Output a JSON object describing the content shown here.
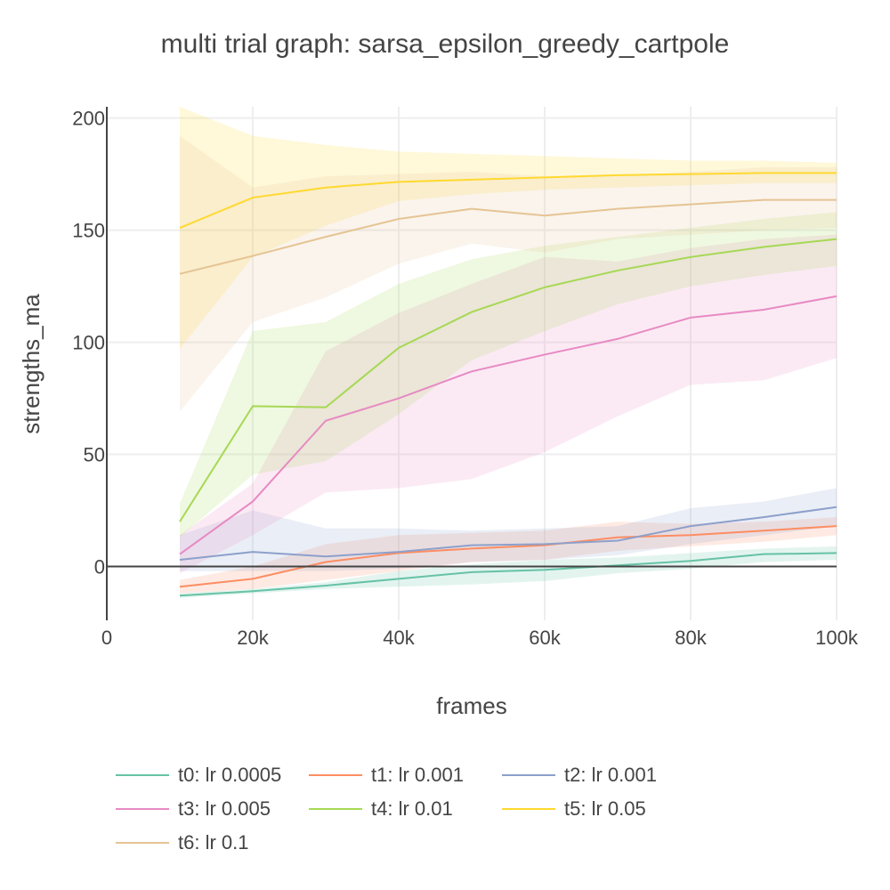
{
  "chart_data": {
    "type": "line",
    "title": "multi trial graph: sarsa_epsilon_greedy_cartpole",
    "xlabel": "frames",
    "ylabel": "strengths_ma",
    "xlim": [
      0,
      100000
    ],
    "ylim": [
      -24,
      205
    ],
    "x_ticks": [
      0,
      20000,
      40000,
      60000,
      80000,
      100000
    ],
    "x_tick_labels": [
      "0",
      "20k",
      "40k",
      "60k",
      "80k",
      "100k"
    ],
    "y_ticks": [
      0,
      50,
      100,
      150,
      200
    ],
    "y_tick_labels": [
      "0",
      "50",
      "100",
      "150",
      "200"
    ],
    "grid": true,
    "legend_position": "bottom",
    "x": [
      10000,
      20000,
      30000,
      40000,
      50000,
      60000,
      70000,
      80000,
      90000,
      100000
    ],
    "series": [
      {
        "name": "t0: lr 0.0005",
        "color": "#66c2a5",
        "values": [
          -13,
          -11,
          -8.5,
          -5.5,
          -2.5,
          -1.5,
          0.5,
          2.5,
          5.5,
          6
        ],
        "lower": [
          -14,
          -12,
          -10,
          -9,
          -8,
          -6.5,
          -3,
          -1,
          2,
          3
        ],
        "upper": [
          -12,
          -10,
          -7,
          -2,
          1,
          3,
          4,
          6,
          8,
          9
        ]
      },
      {
        "name": "t1: lr 0.001",
        "color": "#fc8d62",
        "values": [
          -9,
          -5.5,
          2,
          6,
          8,
          9.5,
          13,
          14,
          16,
          18
        ],
        "lower": [
          -12,
          -10,
          -6,
          -2,
          2,
          3,
          7,
          9,
          11,
          14
        ],
        "upper": [
          -6,
          0,
          10,
          14,
          15,
          16,
          20,
          19,
          20,
          22
        ]
      },
      {
        "name": "t2: lr 0.001",
        "color": "#8da0cb",
        "values": [
          3,
          6.5,
          4.5,
          6.5,
          9.5,
          10,
          11.5,
          18,
          22,
          26.5
        ],
        "lower": [
          -2,
          -2,
          -2,
          -1,
          2,
          3,
          5,
          10,
          14,
          18
        ],
        "upper": [
          14,
          25,
          17,
          17,
          16,
          17,
          18,
          26,
          29,
          35
        ]
      },
      {
        "name": "t3: lr 0.005",
        "color": "#e78ac3",
        "values": [
          5.5,
          29,
          65,
          75,
          87,
          94.5,
          101.5,
          111,
          114.5,
          120.5
        ],
        "lower": [
          -3,
          14,
          33,
          35,
          39,
          51,
          67,
          81,
          83,
          93
        ],
        "upper": [
          14,
          37,
          96,
          113,
          126,
          138,
          136,
          142,
          146,
          148
        ]
      },
      {
        "name": "t4: lr 0.01",
        "color": "#a6d854",
        "values": [
          20,
          71.5,
          71,
          97.5,
          113.5,
          124.5,
          132,
          138,
          142.5,
          146
        ],
        "lower": [
          13,
          41,
          47,
          68,
          92,
          105,
          117,
          125,
          130,
          134
        ],
        "upper": [
          28,
          105,
          109,
          126,
          137,
          143,
          147,
          151,
          155,
          158
        ]
      },
      {
        "name": "t5: lr 0.05",
        "color": "#ffd92f",
        "values": [
          151,
          164.5,
          169,
          171.5,
          172.5,
          173.5,
          174.5,
          175,
          175.5,
          175.5
        ],
        "lower": [
          97,
          138,
          152,
          163,
          166,
          168,
          169,
          170,
          171,
          171
        ],
        "upper": [
          205,
          192,
          188,
          185,
          184,
          183,
          182,
          181,
          181,
          180
        ]
      },
      {
        "name": "t6: lr 0.1",
        "color": "#e5c494",
        "values": [
          130.5,
          138.5,
          147,
          155,
          159.5,
          156.5,
          159.5,
          161.5,
          163.5,
          163.5
        ],
        "lower": [
          69,
          109,
          120,
          135,
          144,
          140,
          146,
          148,
          150,
          151
        ],
        "upper": [
          192,
          169,
          174,
          175,
          176,
          174,
          174,
          176,
          178,
          178
        ]
      }
    ]
  }
}
